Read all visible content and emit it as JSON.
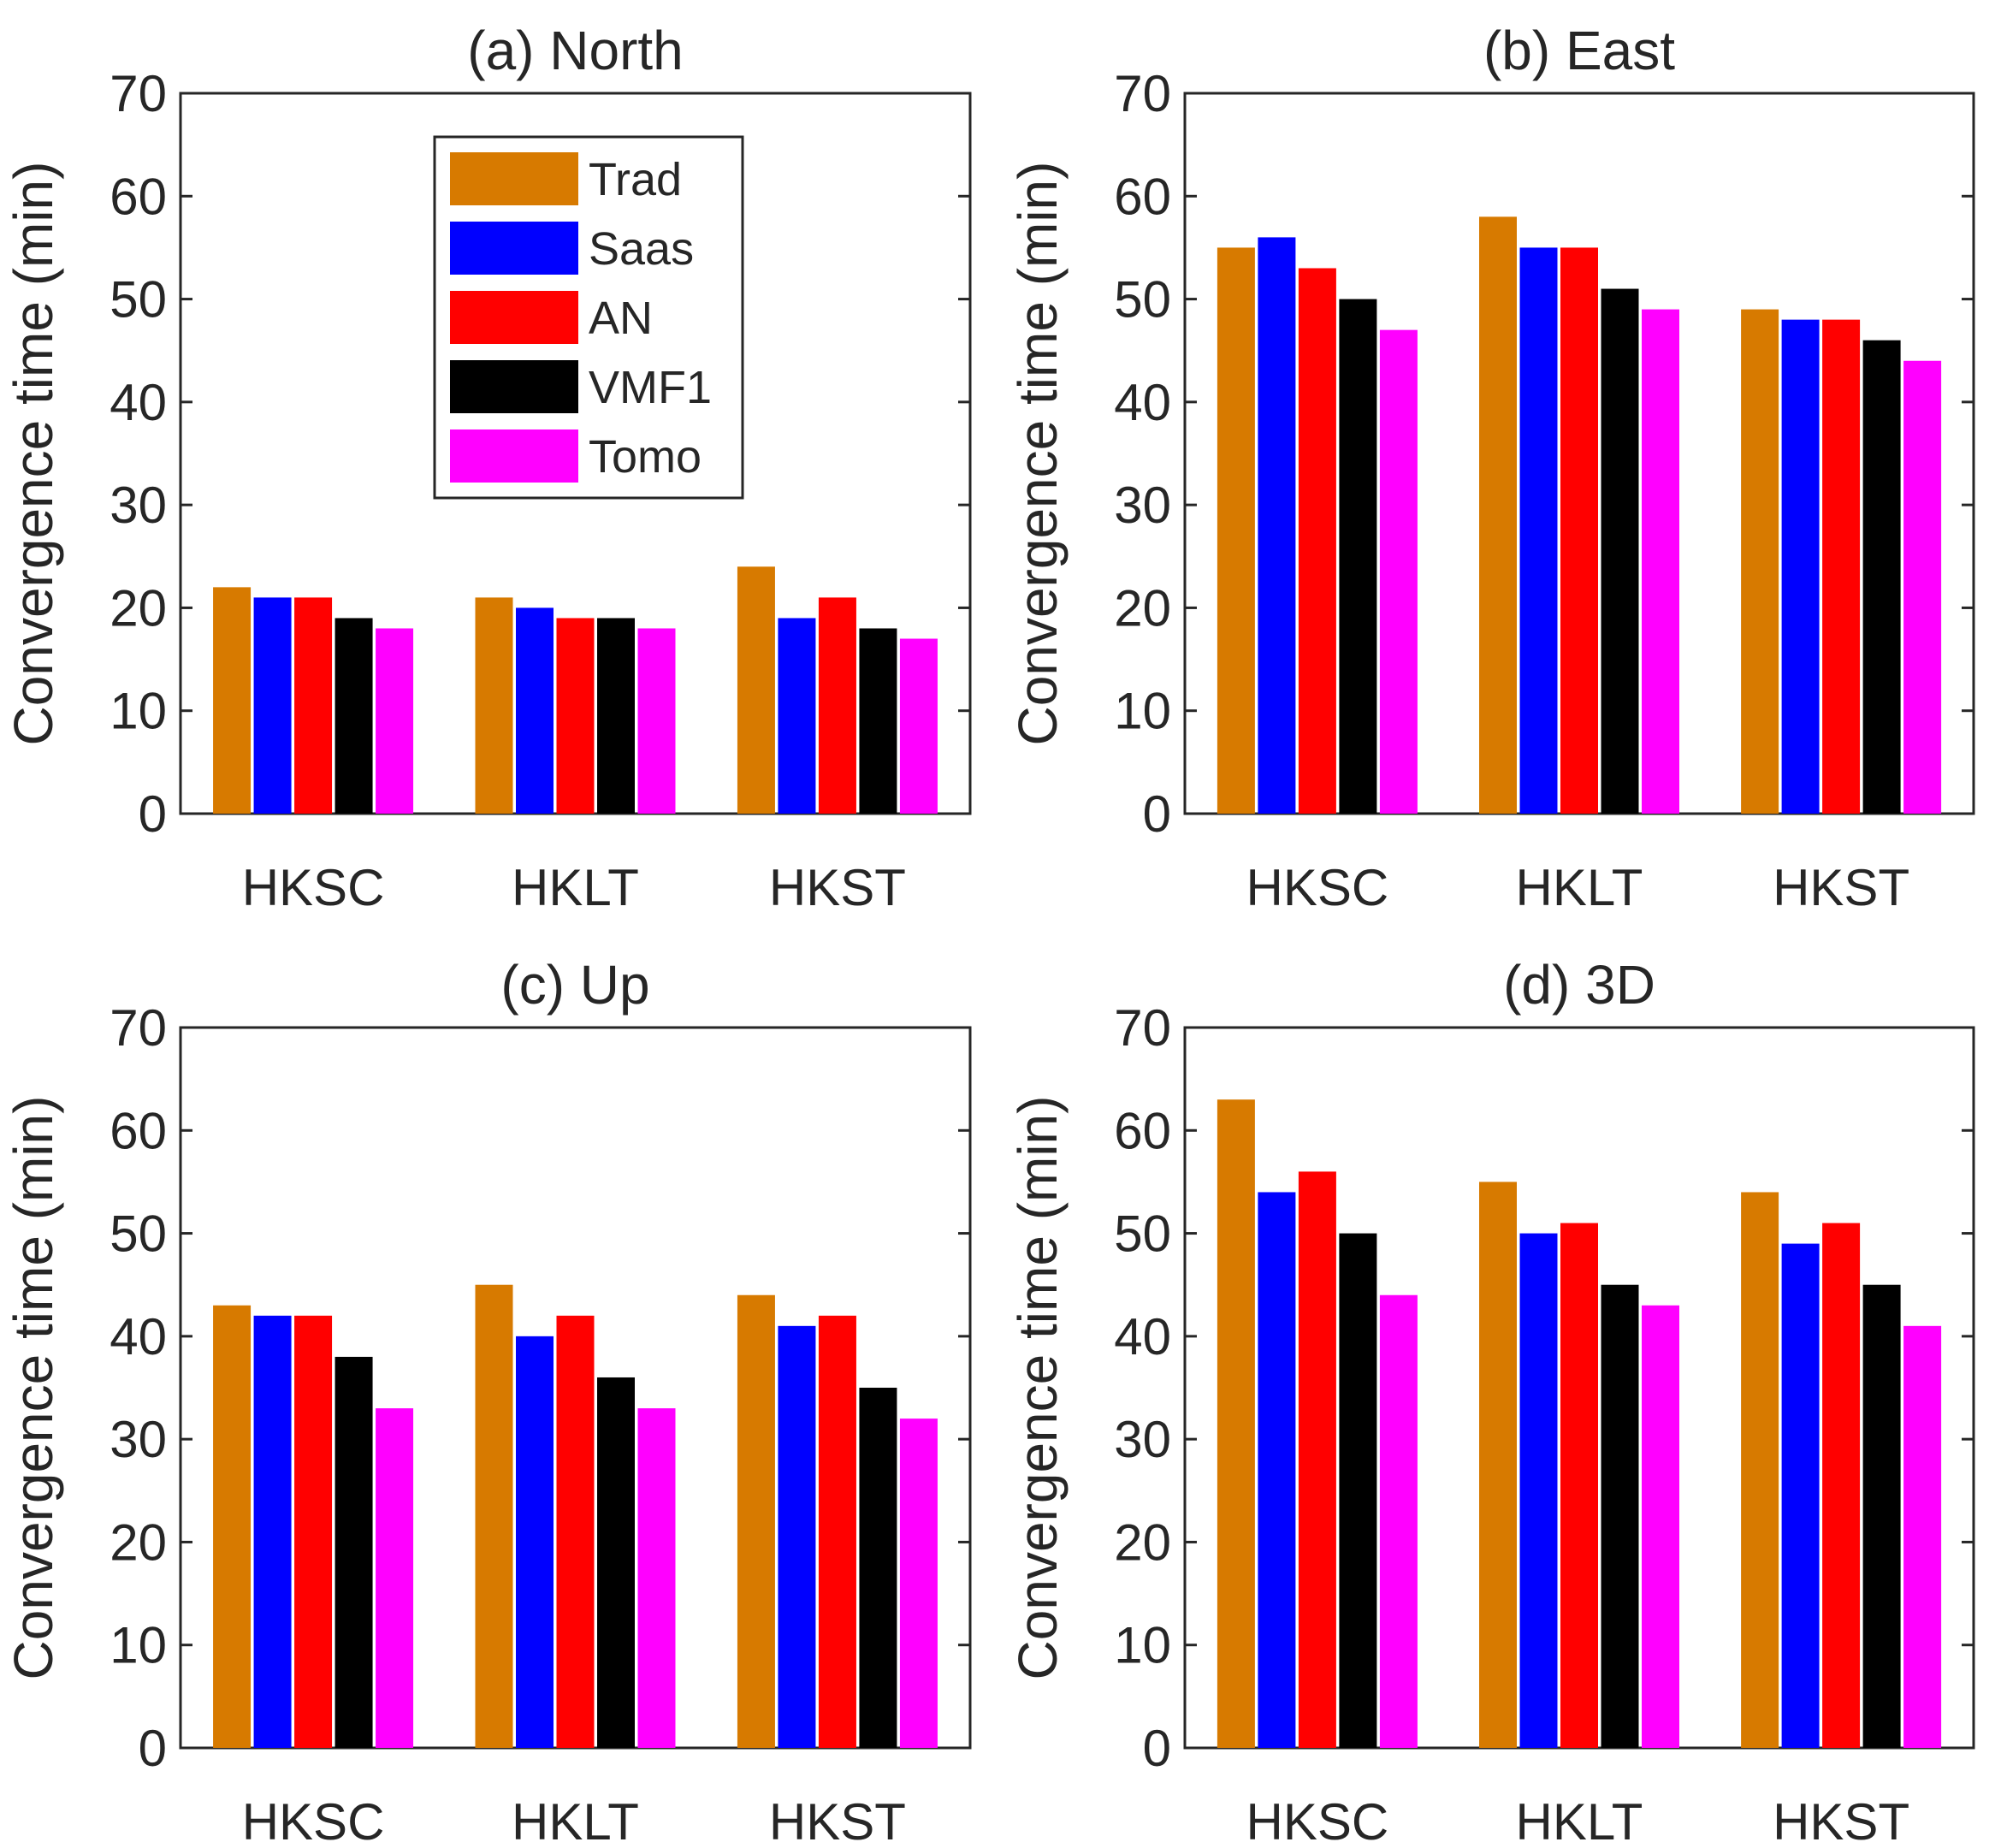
{
  "colors": {
    "Trad": "#D77A00",
    "Saas": "#0000FF",
    "AN": "#FF0000",
    "VMF1": "#000000",
    "Tomo": "#FF00FF",
    "axis": "#262626",
    "grid": "#8c8c8c"
  },
  "legend": {
    "items": [
      "Trad",
      "Saas",
      "AN",
      "VMF1",
      "Tomo"
    ]
  },
  "chart_data": [
    {
      "type": "bar",
      "title": "(a) North",
      "ylabel": "Convergence time (min)",
      "xlabel": "",
      "categories": [
        "HKSC",
        "HKLT",
        "HKST"
      ],
      "ylim": [
        0,
        70
      ],
      "yticks": [
        0,
        10,
        20,
        30,
        40,
        50,
        60,
        70
      ],
      "series": [
        {
          "name": "Trad",
          "values": [
            22,
            21,
            24
          ]
        },
        {
          "name": "Saas",
          "values": [
            21,
            20,
            19
          ]
        },
        {
          "name": "AN",
          "values": [
            21,
            19,
            21
          ]
        },
        {
          "name": "VMF1",
          "values": [
            19,
            19,
            18
          ]
        },
        {
          "name": "Tomo",
          "values": [
            18,
            18,
            17
          ]
        }
      ]
    },
    {
      "type": "bar",
      "title": "(b) East",
      "ylabel": "Convergence time (min)",
      "xlabel": "",
      "categories": [
        "HKSC",
        "HKLT",
        "HKST"
      ],
      "ylim": [
        0,
        70
      ],
      "yticks": [
        0,
        10,
        20,
        30,
        40,
        50,
        60,
        70
      ],
      "series": [
        {
          "name": "Trad",
          "values": [
            55,
            58,
            49
          ]
        },
        {
          "name": "Saas",
          "values": [
            56,
            55,
            48
          ]
        },
        {
          "name": "AN",
          "values": [
            53,
            55,
            48
          ]
        },
        {
          "name": "VMF1",
          "values": [
            50,
            51,
            46
          ]
        },
        {
          "name": "Tomo",
          "values": [
            47,
            49,
            44
          ]
        }
      ]
    },
    {
      "type": "bar",
      "title": "(c) Up",
      "ylabel": "Convergence time (min)",
      "xlabel": "",
      "categories": [
        "HKSC",
        "HKLT",
        "HKST"
      ],
      "ylim": [
        0,
        70
      ],
      "yticks": [
        0,
        10,
        20,
        30,
        40,
        50,
        60,
        70
      ],
      "series": [
        {
          "name": "Trad",
          "values": [
            43,
            45,
            44
          ]
        },
        {
          "name": "Saas",
          "values": [
            42,
            40,
            41
          ]
        },
        {
          "name": "AN",
          "values": [
            42,
            42,
            42
          ]
        },
        {
          "name": "VMF1",
          "values": [
            38,
            36,
            35
          ]
        },
        {
          "name": "Tomo",
          "values": [
            33,
            33,
            32
          ]
        }
      ]
    },
    {
      "type": "bar",
      "title": "(d) 3D",
      "ylabel": "Convergence time (min)",
      "xlabel": "",
      "categories": [
        "HKSC",
        "HKLT",
        "HKST"
      ],
      "ylim": [
        0,
        70
      ],
      "yticks": [
        0,
        10,
        20,
        30,
        40,
        50,
        60,
        70
      ],
      "series": [
        {
          "name": "Trad",
          "values": [
            63,
            55,
            54
          ]
        },
        {
          "name": "Saas",
          "values": [
            54,
            50,
            49
          ]
        },
        {
          "name": "AN",
          "values": [
            56,
            51,
            51
          ]
        },
        {
          "name": "VMF1",
          "values": [
            50,
            45,
            45
          ]
        },
        {
          "name": "Tomo",
          "values": [
            44,
            43,
            41
          ]
        }
      ]
    }
  ]
}
